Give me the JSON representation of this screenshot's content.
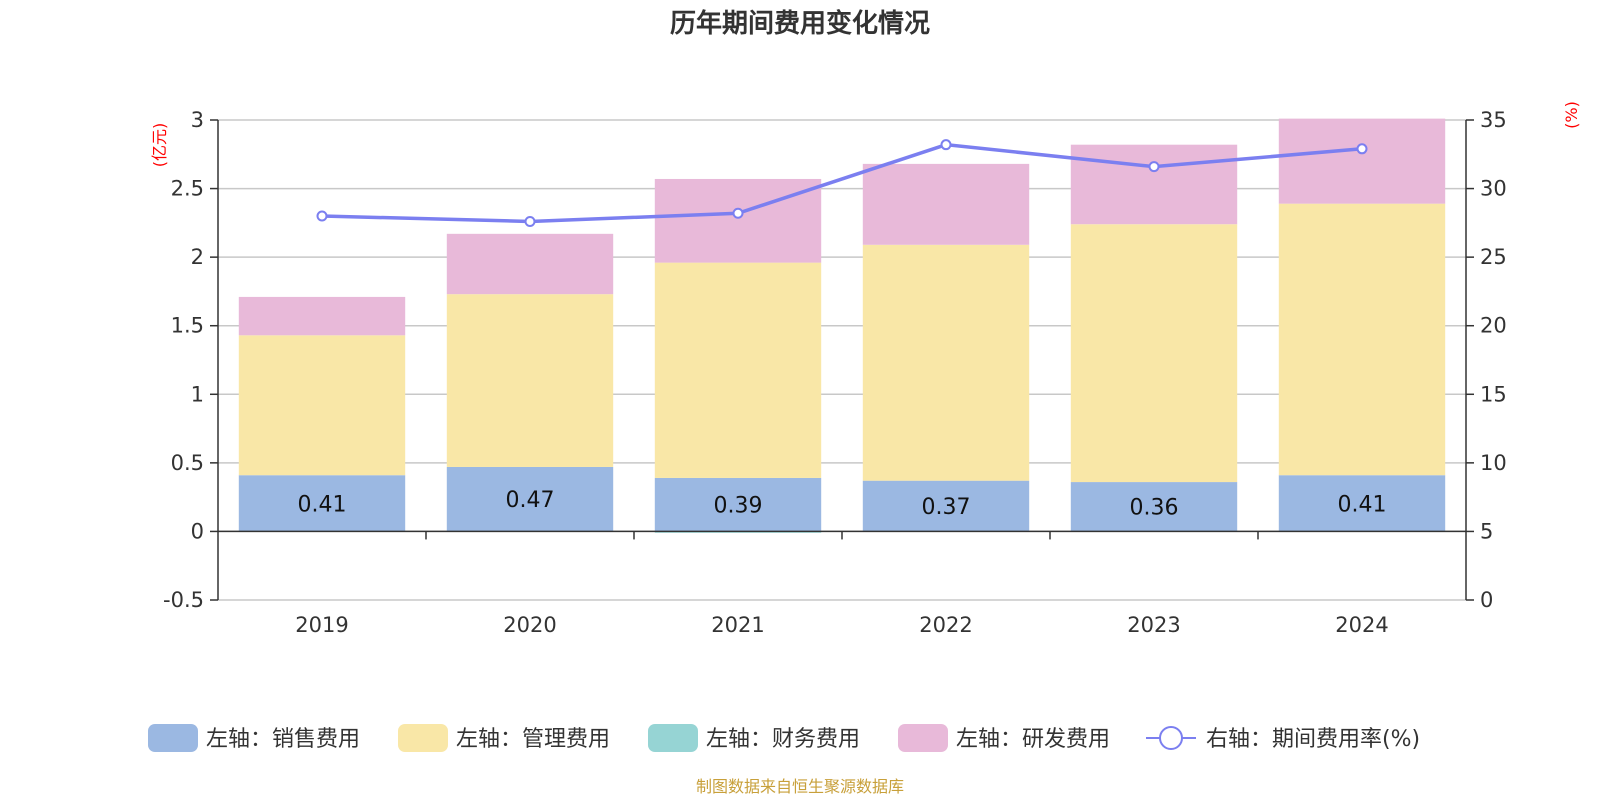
{
  "chart_data": {
    "type": "bar",
    "stacked": true,
    "title": "历年期间费用变化情况",
    "categories": [
      "2019",
      "2020",
      "2021",
      "2022",
      "2023",
      "2024"
    ],
    "y_left": {
      "unit": "(亿元)",
      "ylim": [
        -0.5,
        3
      ],
      "ticks": [
        "3",
        "2.5",
        "2",
        "1.5",
        "1",
        "0.5",
        "0",
        "-0.5"
      ],
      "tick_values": [
        3,
        2.5,
        2,
        1.5,
        1,
        0.5,
        0,
        -0.5
      ]
    },
    "y_right": {
      "unit": "(%)",
      "ylim": [
        0,
        35
      ],
      "ticks": [
        "35",
        "30",
        "25",
        "20",
        "15",
        "10",
        "5",
        "0"
      ],
      "tick_values": [
        35,
        30,
        25,
        20,
        15,
        10,
        5,
        0
      ]
    },
    "series": [
      {
        "name": "左轴：销售费用",
        "axis": "left",
        "type": "bar",
        "color": "#9bb8e2",
        "values": [
          0.41,
          0.47,
          0.39,
          0.37,
          0.36,
          0.41
        ],
        "labels": [
          "0.41",
          "0.47",
          "0.39",
          "0.37",
          "0.36",
          "0.41"
        ]
      },
      {
        "name": "左轴：管理费用",
        "axis": "left",
        "type": "bar",
        "color": "#f9e7a7",
        "values": [
          1.02,
          1.26,
          1.57,
          1.72,
          1.88,
          1.98
        ]
      },
      {
        "name": "左轴：财务费用",
        "axis": "left",
        "type": "bar",
        "color": "#96d4d4",
        "values": [
          0,
          0,
          -0.01,
          0,
          0,
          0
        ]
      },
      {
        "name": "左轴：研发费用",
        "axis": "left",
        "type": "bar",
        "color": "#e8b9d9",
        "values": [
          0.28,
          0.44,
          0.61,
          0.59,
          0.58,
          0.62
        ]
      },
      {
        "name": "右轴：期间费用率(%)",
        "axis": "right",
        "type": "line",
        "color": "#7b7ff0",
        "values": [
          28.0,
          27.6,
          28.2,
          33.2,
          31.6,
          32.9
        ]
      }
    ],
    "grid": true,
    "legend": "bottom",
    "source": "制图数据来自恒生聚源数据库"
  }
}
